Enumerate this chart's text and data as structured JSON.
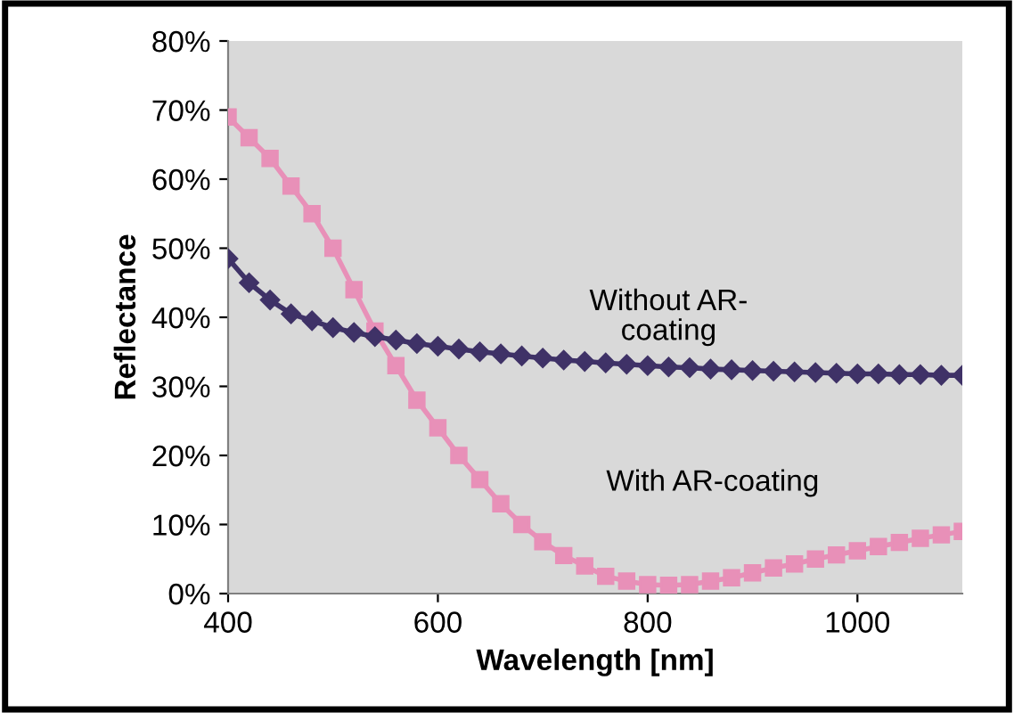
{
  "chart_data": {
    "type": "line",
    "xlabel": "Wavelength [nm]",
    "ylabel": "Reflectance",
    "x": [
      400,
      420,
      440,
      460,
      480,
      500,
      520,
      540,
      560,
      580,
      600,
      620,
      640,
      660,
      680,
      700,
      720,
      740,
      760,
      780,
      800,
      820,
      840,
      860,
      880,
      900,
      920,
      940,
      960,
      980,
      1000,
      1020,
      1040,
      1060,
      1080,
      1100
    ],
    "series": [
      {
        "color": "#3f3267",
        "marker": "diamond",
        "values": [
          48.5,
          45,
          42.5,
          40.5,
          39.5,
          38.5,
          37.8,
          37.2,
          36.7,
          36.2,
          35.8,
          35.4,
          35,
          34.7,
          34.4,
          34.1,
          33.8,
          33.6,
          33.4,
          33.2,
          33,
          32.8,
          32.7,
          32.5,
          32.4,
          32.3,
          32.2,
          32.1,
          32,
          31.9,
          31.8,
          31.8,
          31.7,
          31.7,
          31.6,
          31.6
        ]
      },
      {
        "color": "#e890b8",
        "marker": "square",
        "values": [
          69,
          66,
          63,
          59,
          55,
          50,
          44,
          38,
          33,
          28,
          24,
          20,
          16.5,
          13,
          10,
          7.5,
          5.5,
          4,
          2.5,
          1.8,
          1.3,
          1.2,
          1.3,
          1.8,
          2.3,
          3,
          3.7,
          4.3,
          5,
          5.6,
          6.2,
          6.8,
          7.4,
          8,
          8.5,
          9
        ]
      }
    ],
    "xlim": [
      400,
      1100
    ],
    "xticks": [
      400,
      600,
      800,
      1000
    ],
    "ylim": [
      0,
      80
    ],
    "yticks": [
      {
        "value": 0,
        "label": "0%"
      },
      {
        "value": 10,
        "label": "10%"
      },
      {
        "value": 20,
        "label": "20%"
      },
      {
        "value": 30,
        "label": "30%"
      },
      {
        "value": 40,
        "label": "40%"
      },
      {
        "value": 50,
        "label": "50%"
      },
      {
        "value": 60,
        "label": "60%"
      },
      {
        "value": 70,
        "label": "70%"
      },
      {
        "value": 80,
        "label": "80%"
      }
    ],
    "annotations": [
      "Without AR-\ncoating",
      "With AR-coating"
    ],
    "grid": false,
    "legend": false
  }
}
